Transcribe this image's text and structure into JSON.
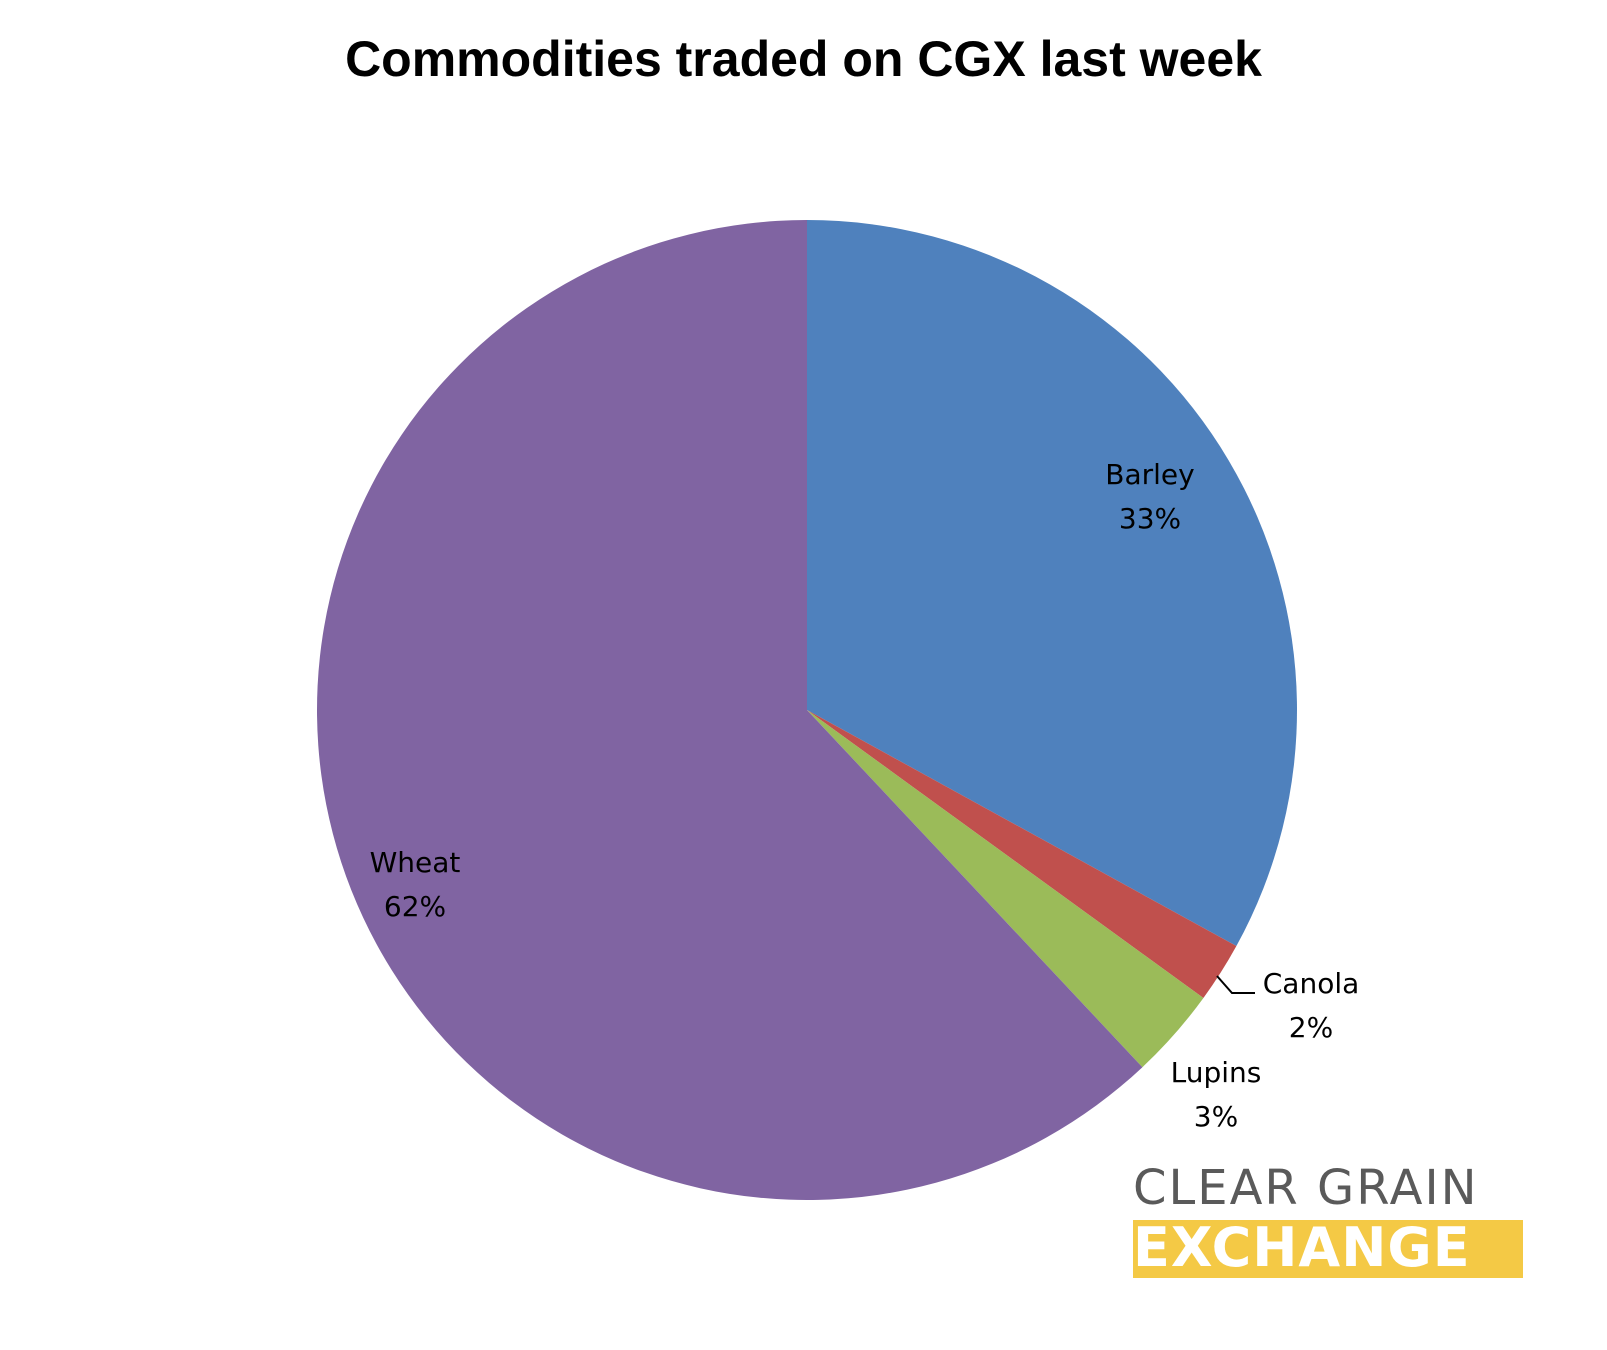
{
  "chart_data": {
    "type": "pie",
    "title": "Commodities traded on CGX last week",
    "slices": [
      {
        "label": "Barley",
        "value": 33,
        "value_label": "33%",
        "color": "#4f81bd"
      },
      {
        "label": "Canola",
        "value": 2,
        "value_label": "2%",
        "color": "#c0504d"
      },
      {
        "label": "Lupins",
        "value": 3,
        "value_label": "3%",
        "color": "#9bbb59"
      },
      {
        "label": "Wheat",
        "value": 62,
        "value_label": "62%",
        "color": "#8064a2"
      }
    ],
    "start_angle": "12 o'clock",
    "direction": "clockwise",
    "legend": "none"
  },
  "logo": {
    "line1": "CLEAR GRAIN",
    "line2": "EXCHANGE",
    "colors": {
      "line1": "#5a5a5a",
      "line2_background": "#f4c945"
    }
  }
}
